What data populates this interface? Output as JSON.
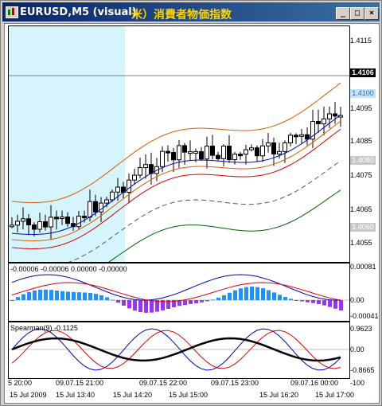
{
  "window": {
    "title": "EURUSD,M5 (visual)",
    "annotation": "米）消費者物価指数",
    "buttons": {
      "minimize": "_",
      "maximize": "□",
      "close": "×"
    }
  },
  "main": {
    "price_ticks": [
      "1.4115",
      "1.4095",
      "1.4085",
      "1.4075",
      "1.4065",
      "1.4055"
    ],
    "current_price": "1.4106",
    "price_tag_blue": "1.4100",
    "price_tag_gray1": "1.4080",
    "price_tag_gray2": "1.4060",
    "colors": {
      "up_candle": "#ffffff",
      "down_candle": "#000000",
      "band": "#e05a00",
      "ma_red": "#e00000",
      "ma_green": "#006400",
      "ma_blue": "#0000c0",
      "ma_dashed": "#555555",
      "shade": "#d6f4fc"
    }
  },
  "osc1": {
    "label": "-0.00006 -0.00006 0.00000 -0.00000",
    "ticks": [
      "0.00081",
      "0.00",
      "-0.00041"
    ],
    "colors": {
      "pos": "#1e90ff",
      "neg": "#9b30ff",
      "line_blue": "#0000c0",
      "line_red": "#e00000"
    }
  },
  "osc2": {
    "label": "Spearman(9) -0.1125",
    "ticks": [
      "0.9623",
      "0.00",
      "-0.8665",
      "-100"
    ]
  },
  "time_axis": {
    "top_row": [
      "5 20:00",
      "09.07.15 21:00",
      "09.07.15 22:00",
      "09.07.15 23:00",
      "09.07.16 00:00"
    ],
    "bottom_row": [
      "15 Jul 2009",
      "15 Jul 13:40",
      "15 Jul 14:20",
      "15 Jul 15:00",
      "15 Jul 16:20",
      "15 Jul 17:00"
    ]
  }
}
